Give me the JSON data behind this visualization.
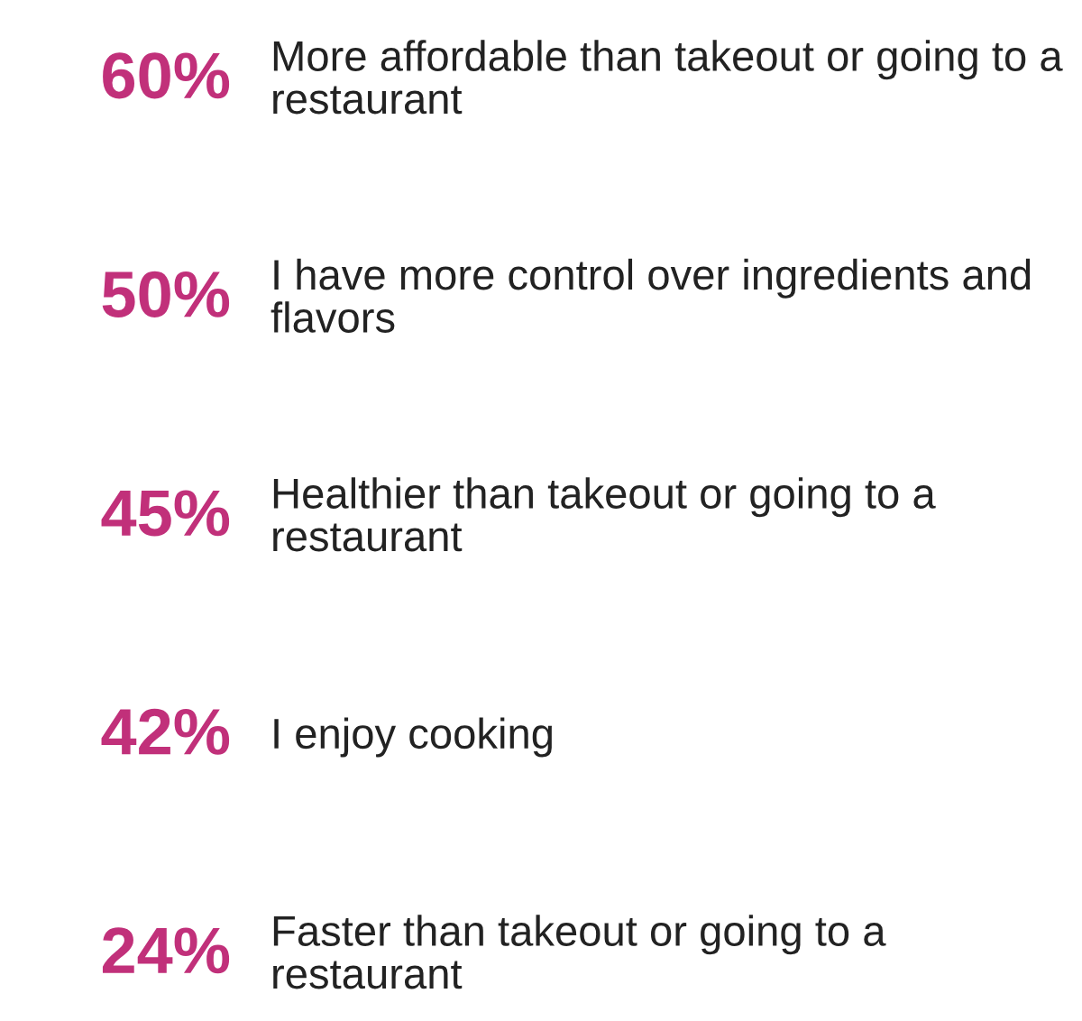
{
  "chart_data": {
    "type": "other",
    "categories": [
      "More affordable than takeout or going to a restaurant",
      "I have more control over ingredients and flavors",
      "Healthier than takeout or going to a restaurant",
      "I enjoy cooking",
      "Faster than takeout or going to a restaurant"
    ],
    "values": [
      60,
      50,
      45,
      42,
      24
    ],
    "value_labels": [
      "60%",
      "50%",
      "45%",
      "42%",
      "24%"
    ],
    "color": "#c1307a"
  }
}
